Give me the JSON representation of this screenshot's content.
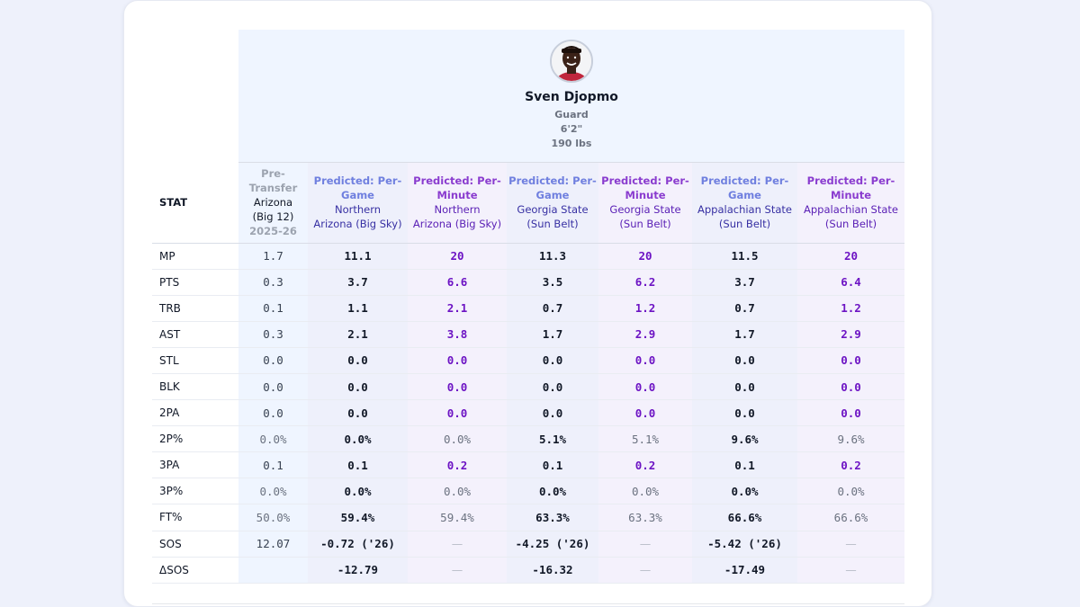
{
  "player": {
    "name": "Sven Djopmo",
    "position": "Guard",
    "height": "6'2\"",
    "weight": "190 lbs",
    "avatar_icon": "player-headshot"
  },
  "table": {
    "stat_header": "STAT",
    "columns": [
      {
        "type": "pre",
        "line1": "Pre-",
        "line2": "Transfer",
        "team": "Arizona",
        "team2": "(Big 12)",
        "season": "2025-26"
      },
      {
        "type": "pg",
        "kind1": "Predicted: Per-",
        "kind2": "Game",
        "team1": "Northern",
        "team2": "Arizona (Big Sky)"
      },
      {
        "type": "pm",
        "kind1": "Predicted: Per-",
        "kind2": "Minute",
        "team1": "Northern",
        "team2": "Arizona (Big Sky)"
      },
      {
        "type": "pg",
        "kind1": "Predicted: Per-",
        "kind2": "Game",
        "team1": "Georgia State",
        "team2": "(Sun Belt)"
      },
      {
        "type": "pm",
        "kind1": "Predicted: Per-",
        "kind2": "Minute",
        "team1": "Georgia State",
        "team2": "(Sun Belt)"
      },
      {
        "type": "pg",
        "kind1": "Predicted: Per-",
        "kind2": "Game",
        "team1": "Appalachian State",
        "team2": "(Sun Belt)"
      },
      {
        "type": "pm",
        "kind1": "Predicted: Per-",
        "kind2": "Minute",
        "team1": "Appalachian State",
        "team2": "(Sun Belt)"
      }
    ],
    "rows": [
      {
        "stat": "MP",
        "cells": [
          "1.7",
          "11.1",
          "20",
          "11.3",
          "20",
          "11.5",
          "20"
        ]
      },
      {
        "stat": "PTS",
        "cells": [
          "0.3",
          "3.7",
          "6.6",
          "3.5",
          "6.2",
          "3.7",
          "6.4"
        ]
      },
      {
        "stat": "TRB",
        "cells": [
          "0.1",
          "1.1",
          "2.1",
          "0.7",
          "1.2",
          "0.7",
          "1.2"
        ]
      },
      {
        "stat": "AST",
        "cells": [
          "0.3",
          "2.1",
          "3.8",
          "1.7",
          "2.9",
          "1.7",
          "2.9"
        ]
      },
      {
        "stat": "STL",
        "cells": [
          "0.0",
          "0.0",
          "0.0",
          "0.0",
          "0.0",
          "0.0",
          "0.0"
        ]
      },
      {
        "stat": "BLK",
        "cells": [
          "0.0",
          "0.0",
          "0.0",
          "0.0",
          "0.0",
          "0.0",
          "0.0"
        ]
      },
      {
        "stat": "2PA",
        "cells": [
          "0.0",
          "0.0",
          "0.0",
          "0.0",
          "0.0",
          "0.0",
          "0.0"
        ]
      },
      {
        "stat": "2P%",
        "cells": [
          "0.0%",
          "0.0%",
          "0.0%",
          "5.1%",
          "5.1%",
          "9.6%",
          "9.6%"
        ],
        "pct": true
      },
      {
        "stat": "3PA",
        "cells": [
          "0.1",
          "0.1",
          "0.2",
          "0.1",
          "0.2",
          "0.1",
          "0.2"
        ]
      },
      {
        "stat": "3P%",
        "cells": [
          "0.0%",
          "0.0%",
          "0.0%",
          "0.0%",
          "0.0%",
          "0.0%",
          "0.0%"
        ],
        "pct": true
      },
      {
        "stat": "FT%",
        "cells": [
          "50.0%",
          "59.4%",
          "59.4%",
          "63.3%",
          "63.3%",
          "66.6%",
          "66.6%"
        ],
        "pct": true
      },
      {
        "stat": "SOS",
        "cells": [
          "12.07",
          "-0.72 ('26)",
          "—",
          "-4.25 ('26)",
          "—",
          "-5.42 ('26)",
          "—"
        ]
      },
      {
        "stat": "ΔSOS",
        "cells": [
          "",
          "-12.79",
          "—",
          "-16.32",
          "—",
          "-17.49",
          "—"
        ]
      }
    ]
  },
  "colors": {
    "background": "#eef1fb",
    "profile_bg": "#eff5ff",
    "per_game_bg": "#eef0fb",
    "per_minute_bg": "#f4f1fc",
    "per_game_label": "#6f7fdf",
    "per_minute_label": "#8a3ccf",
    "per_minute_value": "#6d14c4"
  }
}
